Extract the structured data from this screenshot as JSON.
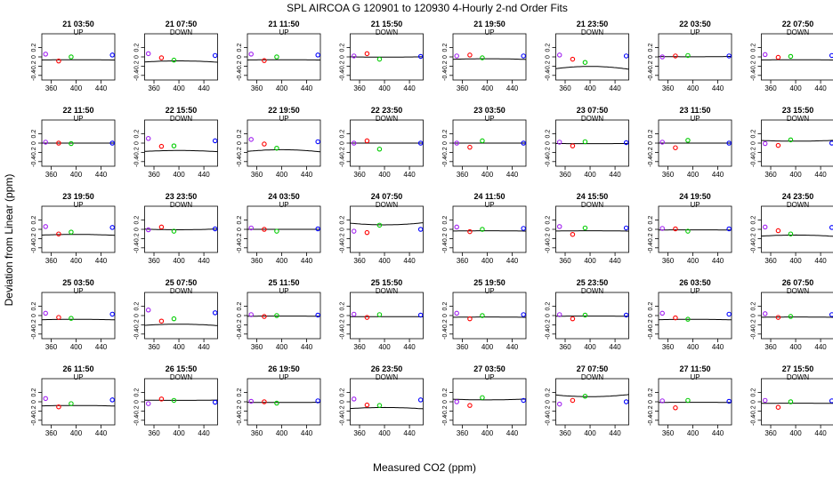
{
  "figure": {
    "title": "SPL   AIRCOA G   120901 to 120930   4-Hourly 2-nd Order Fits",
    "xlabel": "Measured CO2 (ppm)",
    "ylabel": "Deviation from Linear (ppm)"
  },
  "colors": {
    "curve": "#000000",
    "std1": "#a020f0",
    "std2": "#ff0000",
    "std3": "#00cc00",
    "std4": "#0000ff"
  },
  "chart_data": {
    "type": "scatter",
    "layout": "grid 5 rows x 8 columns",
    "xlim": [
      345,
      462
    ],
    "ylim": [
      -0.5,
      0.5
    ],
    "xticks": [
      360,
      400,
      440
    ],
    "xtick_labels": [
      "360",
      "400",
      "440"
    ],
    "yticks": [
      -0.4,
      -0.2,
      0.0,
      0.2
    ],
    "ytick_labels": [
      "-0.4",
      "-0.2",
      "0",
      "0.2"
    ],
    "standards_x": [
      351,
      372,
      392,
      458
    ],
    "panels": [
      {
        "title": "21 03:50",
        "dir": "UP",
        "a": -0.062,
        "c": -1.5e-06,
        "pts": [
          0.06,
          -0.09,
          0.0,
          0.04
        ]
      },
      {
        "title": "21 07:50",
        "dir": "DOWN",
        "a": -0.087,
        "c": -7.5e-06,
        "pts": [
          0.07,
          -0.02,
          -0.07,
          0.03
        ]
      },
      {
        "title": "21 11:50",
        "dir": "UP",
        "a": -0.062,
        "c": -1.5e-06,
        "pts": [
          0.06,
          -0.08,
          0.0,
          0.04
        ]
      },
      {
        "title": "21 15:50",
        "dir": "DOWN",
        "a": -0.005,
        "c": 2e-06,
        "pts": [
          0.02,
          0.07,
          -0.05,
          0.01
        ]
      },
      {
        "title": "21 19:50",
        "dir": "UP",
        "a": -0.04,
        "c": -4e-06,
        "pts": [
          0.02,
          0.04,
          -0.02,
          0.02
        ]
      },
      {
        "title": "21 23:50",
        "dir": "DOWN",
        "a": -0.206,
        "c": -1.6e-05,
        "pts": [
          0.04,
          -0.05,
          -0.12,
          0.02
        ]
      },
      {
        "title": "22 03:50",
        "dir": "UP",
        "a": 0.002,
        "c": 2e-06,
        "pts": [
          0.0,
          0.02,
          0.03,
          0.02
        ]
      },
      {
        "title": "22 07:50",
        "dir": "DOWN",
        "a": -0.062,
        "c": -1.5e-06,
        "pts": [
          0.05,
          -0.01,
          0.01,
          0.03
        ]
      },
      {
        "title": "22 11:50",
        "dir": "UP",
        "a": 0.0,
        "c": 0.0,
        "pts": [
          0.02,
          0.0,
          -0.01,
          0.0
        ]
      },
      {
        "title": "22 15:50",
        "dir": "DOWN",
        "a": -0.16,
        "c": -6.5e-06,
        "pts": [
          0.1,
          -0.07,
          -0.06,
          0.05
        ]
      },
      {
        "title": "22 19:50",
        "dir": "UP",
        "a": -0.143,
        "c": -1.2e-05,
        "pts": [
          0.08,
          -0.02,
          -0.11,
          0.03
        ]
      },
      {
        "title": "22 23:50",
        "dir": "DOWN",
        "a": 0.0,
        "c": 0.0,
        "pts": [
          0.0,
          0.05,
          -0.13,
          0.0
        ]
      },
      {
        "title": "23 03:50",
        "dir": "UP",
        "a": 0.0,
        "c": 0.0,
        "pts": [
          0.0,
          -0.09,
          0.05,
          0.0
        ]
      },
      {
        "title": "23 07:50",
        "dir": "DOWN",
        "a": -0.012,
        "c": 1e-06,
        "pts": [
          0.02,
          -0.06,
          0.03,
          0.01
        ]
      },
      {
        "title": "23 11:50",
        "dir": "UP",
        "a": 0.0,
        "c": 0.0,
        "pts": [
          0.02,
          -0.1,
          0.06,
          0.0
        ]
      },
      {
        "title": "23 15:50",
        "dir": "DOWN",
        "a": 0.042,
        "c": 5e-06,
        "pts": [
          -0.01,
          -0.05,
          0.07,
          0.0
        ]
      },
      {
        "title": "23 19:50",
        "dir": "UP",
        "a": -0.11,
        "c": -5e-06,
        "pts": [
          0.06,
          -0.1,
          -0.06,
          0.04
        ]
      },
      {
        "title": "23 23:50",
        "dir": "DOWN",
        "a": -0.009,
        "c": 4.5e-06,
        "pts": [
          -0.01,
          0.05,
          -0.04,
          0.01
        ]
      },
      {
        "title": "24 03:50",
        "dir": "UP",
        "a": 0.0,
        "c": 0.0,
        "pts": [
          0.03,
          0.0,
          -0.04,
          0.01
        ]
      },
      {
        "title": "24 07:50",
        "dir": "DOWN",
        "a": 0.097,
        "c": 1.2e-05,
        "pts": [
          -0.04,
          -0.07,
          0.09,
          0.0
        ]
      },
      {
        "title": "24 11:50",
        "dir": "UP",
        "a": -0.031,
        "c": -2e-06,
        "pts": [
          0.05,
          -0.05,
          0.0,
          0.02
        ]
      },
      {
        "title": "24 15:50",
        "dir": "DOWN",
        "a": -0.031,
        "c": -2e-06,
        "pts": [
          0.06,
          -0.11,
          0.03,
          0.03
        ]
      },
      {
        "title": "24 19:50",
        "dir": "UP",
        "a": -0.011,
        "c": -1e-06,
        "pts": [
          0.02,
          0.01,
          -0.04,
          0.01
        ]
      },
      {
        "title": "24 23:50",
        "dir": "DOWN",
        "a": -0.124,
        "c": -7.5e-06,
        "pts": [
          0.05,
          -0.03,
          -0.1,
          0.04
        ]
      },
      {
        "title": "25 03:50",
        "dir": "UP",
        "a": -0.082,
        "c": -2.5e-06,
        "pts": [
          0.05,
          -0.04,
          -0.06,
          0.03
        ]
      },
      {
        "title": "25 07:50",
        "dir": "DOWN",
        "a": -0.187,
        "c": -8e-06,
        "pts": [
          0.12,
          -0.12,
          -0.07,
          0.06
        ]
      },
      {
        "title": "25 11:50",
        "dir": "UP",
        "a": -0.011,
        "c": -1e-06,
        "pts": [
          0.02,
          -0.02,
          0.0,
          0.01
        ]
      },
      {
        "title": "25 15:50",
        "dir": "DOWN",
        "a": -0.023,
        "c": -1e-06,
        "pts": [
          0.03,
          -0.04,
          0.02,
          0.01
        ]
      },
      {
        "title": "25 19:50",
        "dir": "UP",
        "a": -0.031,
        "c": -2e-06,
        "pts": [
          0.05,
          -0.07,
          0.0,
          0.02
        ]
      },
      {
        "title": "25 23:50",
        "dir": "DOWN",
        "a": -0.011,
        "c": -1e-06,
        "pts": [
          0.02,
          -0.07,
          0.01,
          0.01
        ]
      },
      {
        "title": "26 03:50",
        "dir": "UP",
        "a": -0.082,
        "c": -2.5e-06,
        "pts": [
          0.05,
          -0.05,
          -0.08,
          0.03
        ]
      },
      {
        "title": "26 07:50",
        "dir": "DOWN",
        "a": -0.031,
        "c": -2e-06,
        "pts": [
          0.04,
          -0.04,
          -0.02,
          0.02
        ]
      },
      {
        "title": "26 11:50",
        "dir": "UP",
        "a": -0.08,
        "c": -3e-06,
        "pts": [
          0.07,
          -0.11,
          -0.04,
          0.04
        ]
      },
      {
        "title": "26 15:50",
        "dir": "DOWN",
        "a": 0.03,
        "c": 2e-06,
        "pts": [
          -0.04,
          0.06,
          0.03,
          -0.01
        ]
      },
      {
        "title": "26 19:50",
        "dir": "UP",
        "a": -0.015,
        "c": 1e-06,
        "pts": [
          0.01,
          0.0,
          -0.03,
          0.02
        ]
      },
      {
        "title": "26 23:50",
        "dir": "DOWN",
        "a": -0.124,
        "c": -7.5e-06,
        "pts": [
          0.06,
          -0.07,
          -0.08,
          0.04
        ]
      },
      {
        "title": "27 03:50",
        "dir": "UP",
        "a": 0.041,
        "c": 5e-06,
        "pts": [
          0.0,
          -0.08,
          0.09,
          0.03
        ]
      },
      {
        "title": "27 07:50",
        "dir": "DOWN",
        "a": 0.111,
        "c": 1.2e-05,
        "pts": [
          -0.05,
          0.03,
          0.12,
          0.0
        ]
      },
      {
        "title": "27 11:50",
        "dir": "UP",
        "a": -0.011,
        "c": -1e-06,
        "pts": [
          0.02,
          -0.13,
          0.03,
          0.01
        ]
      },
      {
        "title": "27 15:50",
        "dir": "DOWN",
        "a": -0.031,
        "c": -1e-06,
        "pts": [
          0.03,
          -0.12,
          0.0,
          0.02
        ]
      }
    ]
  }
}
